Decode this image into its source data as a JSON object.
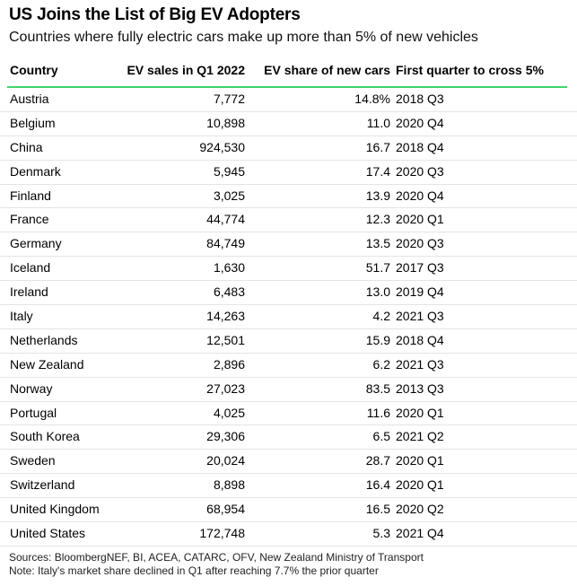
{
  "title": "US Joins the List of Big EV Adopters",
  "subtitle": "Countries where fully electric cars make up more than 5% of new vehicles",
  "chart_data": {
    "type": "table",
    "columns": [
      "Country",
      "EV sales in Q1 2022",
      "EV share of new cars",
      "First quarter to cross 5%"
    ],
    "rows": [
      [
        "Austria",
        "7,772",
        "14.8%",
        "2018 Q3"
      ],
      [
        "Belgium",
        "10,898",
        "11.0",
        "2020 Q4"
      ],
      [
        "China",
        "924,530",
        "16.7",
        "2018 Q4"
      ],
      [
        "Denmark",
        "5,945",
        "17.4",
        "2020 Q3"
      ],
      [
        "Finland",
        "3,025",
        "13.9",
        "2020 Q4"
      ],
      [
        "France",
        "44,774",
        "12.3",
        "2020 Q1"
      ],
      [
        "Germany",
        "84,749",
        "13.5",
        "2020 Q3"
      ],
      [
        "Iceland",
        "1,630",
        "51.7",
        "2017 Q3"
      ],
      [
        "Ireland",
        "6,483",
        "13.0",
        "2019 Q4"
      ],
      [
        "Italy",
        "14,263",
        "4.2",
        "2021 Q3"
      ],
      [
        "Netherlands",
        "12,501",
        "15.9",
        "2018 Q4"
      ],
      [
        "New Zealand",
        "2,896",
        "6.2",
        "2021 Q3"
      ],
      [
        "Norway",
        "27,023",
        "83.5",
        "2013 Q3"
      ],
      [
        "Portugal",
        "4,025",
        "11.6",
        "2020 Q1"
      ],
      [
        "South Korea",
        "29,306",
        "6.5",
        "2021 Q2"
      ],
      [
        "Sweden",
        "20,024",
        "28.7",
        "2020 Q1"
      ],
      [
        "Switzerland",
        "8,898",
        "16.4",
        "2020 Q1"
      ],
      [
        "United Kingdom",
        "68,954",
        "16.5",
        "2020 Q2"
      ],
      [
        "United States",
        "172,748",
        "5.3",
        "2021 Q4"
      ]
    ]
  },
  "footer": {
    "sources": "Sources: BloombergNEF, BI, ACEA, CATARC, OFV, New Zealand Ministry of Transport",
    "note": "Note: Italy's market share declined in Q1 after reaching 7.7% the prior quarter"
  },
  "colors": {
    "header_rule": "#3fd46d"
  }
}
